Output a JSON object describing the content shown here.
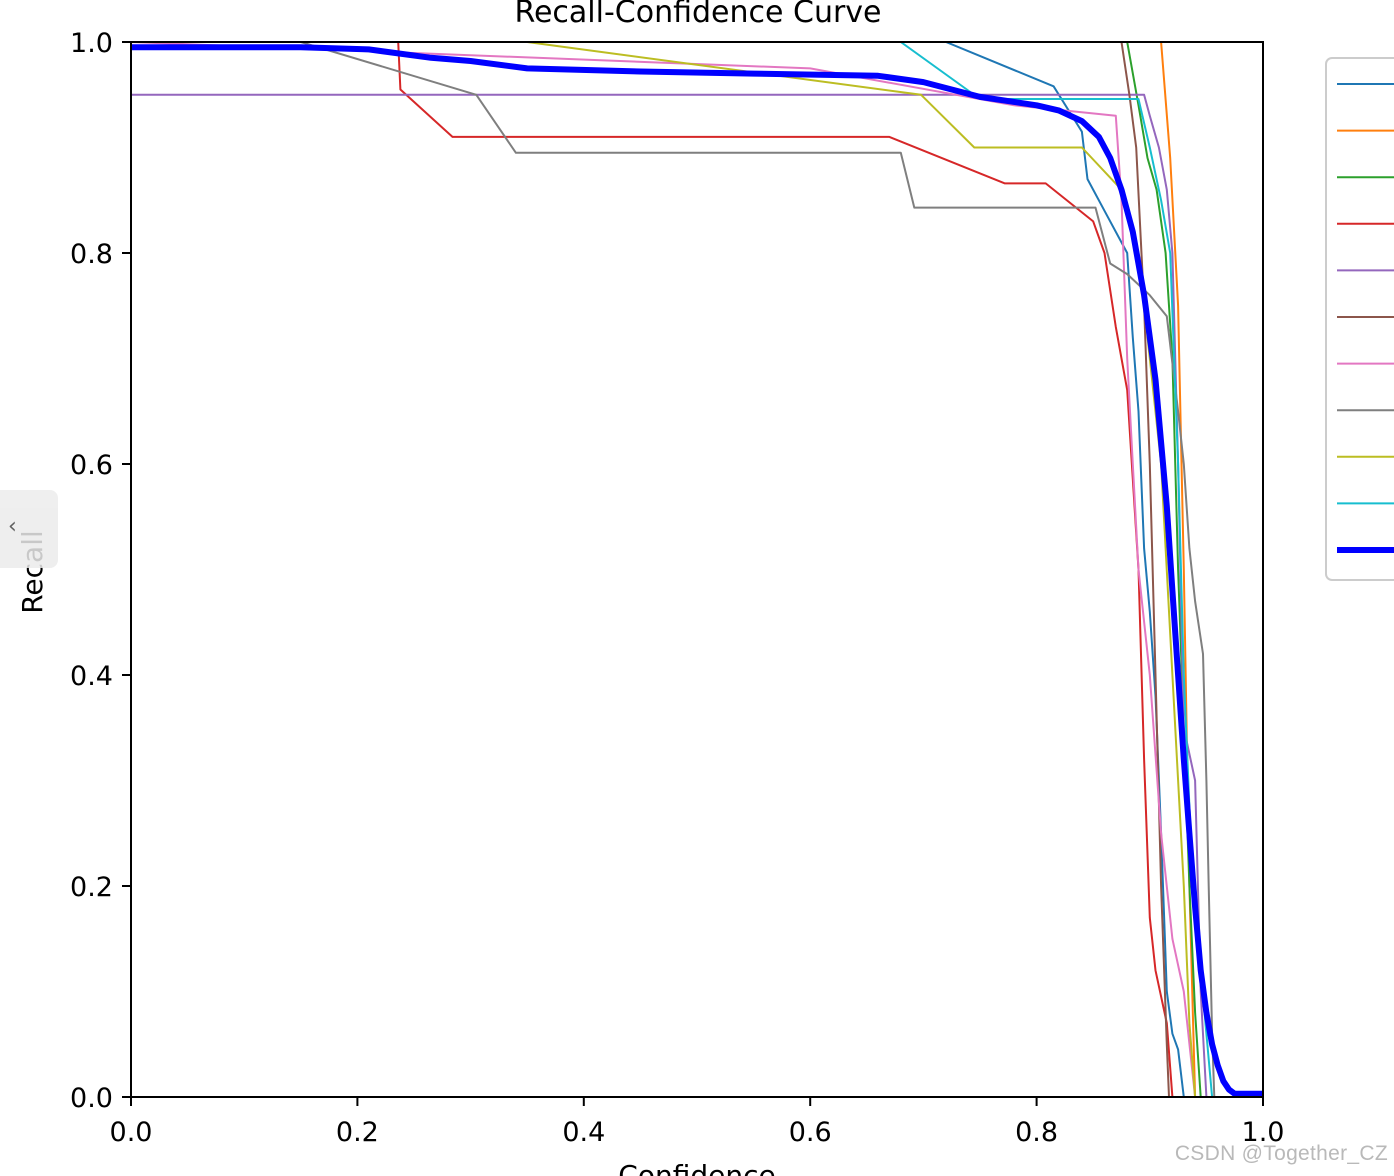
{
  "page": {
    "watermark": "CSDN @Together_CZ",
    "side_tab_icon": "‹"
  },
  "chart_data": {
    "type": "line",
    "title": "Recall-Confidence Curve",
    "xlabel": "Confidence",
    "ylabel": "Recall",
    "xlim": [
      0,
      1
    ],
    "ylim": [
      0,
      1
    ],
    "xticks": [
      "0.0",
      "0.2",
      "0.4",
      "0.6",
      "0.8",
      "1.0"
    ],
    "yticks": [
      "0.0",
      "0.2",
      "0.4",
      "0.6",
      "0.8",
      "1.0"
    ],
    "grid": false,
    "legend_position": "top-right (clipped)",
    "series": [
      {
        "color": "#1f77b4",
        "width": 2,
        "points": [
          [
            0,
            1.0
          ],
          [
            0.72,
            1.0
          ],
          [
            0.815,
            0.958
          ],
          [
            0.84,
            0.915
          ],
          [
            0.845,
            0.87
          ],
          [
            0.86,
            0.84
          ],
          [
            0.88,
            0.8
          ],
          [
            0.885,
            0.72
          ],
          [
            0.89,
            0.65
          ],
          [
            0.895,
            0.52
          ],
          [
            0.9,
            0.46
          ],
          [
            0.905,
            0.38
          ],
          [
            0.91,
            0.25
          ],
          [
            0.915,
            0.1
          ],
          [
            0.92,
            0.06
          ],
          [
            0.925,
            0.045
          ],
          [
            0.93,
            0.0
          ],
          [
            1.0,
            0.0
          ]
        ]
      },
      {
        "color": "#ff7f0e",
        "width": 2,
        "points": [
          [
            0,
            1.0
          ],
          [
            0.91,
            1.0
          ],
          [
            0.918,
            0.89
          ],
          [
            0.925,
            0.75
          ],
          [
            0.93,
            0.5
          ],
          [
            0.935,
            0.2
          ],
          [
            0.94,
            0.0
          ],
          [
            1.0,
            0.0
          ]
        ]
      },
      {
        "color": "#2ca02c",
        "width": 2,
        "points": [
          [
            0,
            1.0
          ],
          [
            0.88,
            1.0
          ],
          [
            0.89,
            0.94
          ],
          [
            0.898,
            0.89
          ],
          [
            0.906,
            0.86
          ],
          [
            0.914,
            0.8
          ],
          [
            0.92,
            0.7
          ],
          [
            0.925,
            0.5
          ],
          [
            0.935,
            0.2
          ],
          [
            0.94,
            0.08
          ],
          [
            0.945,
            0.0
          ],
          [
            1.0,
            0.0
          ]
        ]
      },
      {
        "color": "#d62728",
        "width": 2,
        "points": [
          [
            0,
            1.0
          ],
          [
            0.236,
            1.0
          ],
          [
            0.238,
            0.955
          ],
          [
            0.284,
            0.91
          ],
          [
            0.67,
            0.91
          ],
          [
            0.772,
            0.866
          ],
          [
            0.808,
            0.866
          ],
          [
            0.85,
            0.83
          ],
          [
            0.86,
            0.8
          ],
          [
            0.87,
            0.73
          ],
          [
            0.88,
            0.67
          ],
          [
            0.89,
            0.5
          ],
          [
            0.895,
            0.32
          ],
          [
            0.9,
            0.17
          ],
          [
            0.905,
            0.12
          ],
          [
            0.915,
            0.07
          ],
          [
            0.92,
            0.0
          ],
          [
            1.0,
            0.0
          ]
        ]
      },
      {
        "color": "#9467bd",
        "width": 2,
        "points": [
          [
            0,
            0.95
          ],
          [
            0.895,
            0.95
          ],
          [
            0.9,
            0.93
          ],
          [
            0.908,
            0.9
          ],
          [
            0.915,
            0.86
          ],
          [
            0.92,
            0.8
          ],
          [
            0.925,
            0.6
          ],
          [
            0.93,
            0.35
          ],
          [
            0.94,
            0.3
          ],
          [
            0.945,
            0.1
          ],
          [
            0.95,
            0.0
          ],
          [
            1.0,
            0.0
          ]
        ]
      },
      {
        "color": "#8c564b",
        "width": 2,
        "points": [
          [
            0,
            1.0
          ],
          [
            0.875,
            1.0
          ],
          [
            0.882,
            0.95
          ],
          [
            0.888,
            0.9
          ],
          [
            0.895,
            0.75
          ],
          [
            0.9,
            0.6
          ],
          [
            0.905,
            0.4
          ],
          [
            0.91,
            0.2
          ],
          [
            0.915,
            0.05
          ],
          [
            0.917,
            0.0
          ],
          [
            1.0,
            0.0
          ]
        ]
      },
      {
        "color": "#e377c2",
        "width": 2,
        "points": [
          [
            0,
            1.0
          ],
          [
            0.6,
            0.975
          ],
          [
            0.78,
            0.94
          ],
          [
            0.87,
            0.93
          ],
          [
            0.875,
            0.85
          ],
          [
            0.88,
            0.7
          ],
          [
            0.885,
            0.6
          ],
          [
            0.89,
            0.5
          ],
          [
            0.9,
            0.4
          ],
          [
            0.91,
            0.25
          ],
          [
            0.92,
            0.15
          ],
          [
            0.93,
            0.1
          ],
          [
            0.94,
            0.0
          ],
          [
            1.0,
            0.0
          ]
        ]
      },
      {
        "color": "#7f7f7f",
        "width": 2,
        "points": [
          [
            0,
            1.0
          ],
          [
            0.15,
            1.0
          ],
          [
            0.305,
            0.95
          ],
          [
            0.34,
            0.895
          ],
          [
            0.68,
            0.895
          ],
          [
            0.692,
            0.843
          ],
          [
            0.852,
            0.843
          ],
          [
            0.865,
            0.79
          ],
          [
            0.88,
            0.78
          ],
          [
            0.9,
            0.76
          ],
          [
            0.915,
            0.74
          ],
          [
            0.925,
            0.65
          ],
          [
            0.93,
            0.6
          ],
          [
            0.935,
            0.52
          ],
          [
            0.94,
            0.47
          ],
          [
            0.947,
            0.42
          ],
          [
            0.95,
            0.3
          ],
          [
            0.952,
            0.2
          ],
          [
            0.955,
            0.06
          ],
          [
            0.957,
            0.0
          ],
          [
            1.0,
            0.0
          ]
        ]
      },
      {
        "color": "#bcbd22",
        "width": 2,
        "points": [
          [
            0,
            1.0
          ],
          [
            0.35,
            1.0
          ],
          [
            0.698,
            0.95
          ],
          [
            0.745,
            0.9
          ],
          [
            0.84,
            0.9
          ],
          [
            0.875,
            0.86
          ],
          [
            0.89,
            0.8
          ],
          [
            0.9,
            0.7
          ],
          [
            0.91,
            0.6
          ],
          [
            0.92,
            0.4
          ],
          [
            0.93,
            0.2
          ],
          [
            0.935,
            0.07
          ],
          [
            0.94,
            0.0
          ],
          [
            1.0,
            0.0
          ]
        ]
      },
      {
        "color": "#17becf",
        "width": 2,
        "points": [
          [
            0,
            1.0
          ],
          [
            0.68,
            1.0
          ],
          [
            0.75,
            0.946
          ],
          [
            0.89,
            0.946
          ],
          [
            0.9,
            0.9
          ],
          [
            0.91,
            0.85
          ],
          [
            0.918,
            0.8
          ],
          [
            0.925,
            0.6
          ],
          [
            0.93,
            0.4
          ],
          [
            0.938,
            0.2
          ],
          [
            0.945,
            0.12
          ],
          [
            0.95,
            0.06
          ],
          [
            0.955,
            0.0
          ],
          [
            1.0,
            0.0
          ]
        ]
      },
      {
        "color": "#0000ff",
        "width": 6,
        "points": [
          [
            0,
            0.995
          ],
          [
            0.15,
            0.995
          ],
          [
            0.21,
            0.993
          ],
          [
            0.265,
            0.985
          ],
          [
            0.3,
            0.982
          ],
          [
            0.35,
            0.975
          ],
          [
            0.45,
            0.972
          ],
          [
            0.55,
            0.97
          ],
          [
            0.66,
            0.968
          ],
          [
            0.7,
            0.962
          ],
          [
            0.75,
            0.948
          ],
          [
            0.8,
            0.94
          ],
          [
            0.82,
            0.935
          ],
          [
            0.84,
            0.925
          ],
          [
            0.855,
            0.91
          ],
          [
            0.865,
            0.89
          ],
          [
            0.875,
            0.86
          ],
          [
            0.885,
            0.82
          ],
          [
            0.895,
            0.76
          ],
          [
            0.905,
            0.68
          ],
          [
            0.915,
            0.56
          ],
          [
            0.92,
            0.48
          ],
          [
            0.925,
            0.4
          ],
          [
            0.93,
            0.32
          ],
          [
            0.935,
            0.25
          ],
          [
            0.94,
            0.18
          ],
          [
            0.945,
            0.12
          ],
          [
            0.95,
            0.08
          ],
          [
            0.955,
            0.05
          ],
          [
            0.96,
            0.03
          ],
          [
            0.965,
            0.015
          ],
          [
            0.97,
            0.007
          ],
          [
            0.975,
            0.003
          ],
          [
            1.0,
            0.003
          ]
        ]
      }
    ]
  }
}
